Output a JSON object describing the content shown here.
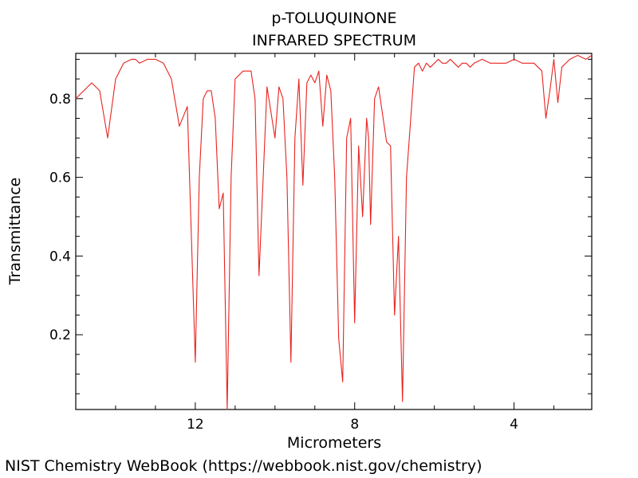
{
  "footer": "NIST Chemistry WebBook (https://webbook.nist.gov/chemistry)",
  "chart_data": {
    "type": "line",
    "title": "p-TOLUQUINONE",
    "subtitle": "INFRARED SPECTRUM",
    "xlabel": "Micrometers",
    "ylabel": "Transmittance",
    "xlim": [
      15.0,
      2.05
    ],
    "ylim": [
      0.01,
      0.915
    ],
    "x_reversed": true,
    "xticks": [
      12,
      8,
      4
    ],
    "yticks": [
      0.2,
      0.4,
      0.6,
      0.8
    ],
    "grid": false,
    "line_color": "#e8231f",
    "series": [
      {
        "x": [
          15.0,
          14.8,
          14.6,
          14.4,
          14.2,
          14.0,
          13.8,
          13.6,
          13.5,
          13.4,
          13.2,
          13.0,
          12.8,
          12.6,
          12.4,
          12.2,
          12.0,
          11.9,
          11.8,
          11.7,
          11.6,
          11.5,
          11.4,
          11.3,
          11.2,
          11.1,
          11.0,
          10.8,
          10.6,
          10.5,
          10.4,
          10.2,
          10.0,
          9.9,
          9.8,
          9.7,
          9.6,
          9.5,
          9.4,
          9.3,
          9.2,
          9.1,
          9.0,
          8.9,
          8.8,
          8.7,
          8.6,
          8.5,
          8.4,
          8.3,
          8.2,
          8.1,
          8.0,
          7.9,
          7.8,
          7.7,
          7.65,
          7.6,
          7.5,
          7.4,
          7.3,
          7.2,
          7.1,
          7.0,
          6.9,
          6.8,
          6.7,
          6.6,
          6.5,
          6.4,
          6.3,
          6.2,
          6.1,
          6.0,
          5.9,
          5.8,
          5.7,
          5.6,
          5.5,
          5.4,
          5.3,
          5.2,
          5.1,
          5.0,
          4.8,
          4.6,
          4.4,
          4.2,
          4.0,
          3.8,
          3.6,
          3.5,
          3.4,
          3.3,
          3.2,
          3.1,
          3.0,
          2.9,
          2.8,
          2.6,
          2.4,
          2.2,
          2.05
        ],
        "y": [
          0.8,
          0.82,
          0.84,
          0.82,
          0.7,
          0.85,
          0.89,
          0.9,
          0.9,
          0.89,
          0.9,
          0.9,
          0.89,
          0.85,
          0.73,
          0.78,
          0.13,
          0.6,
          0.8,
          0.82,
          0.82,
          0.75,
          0.52,
          0.56,
          0.01,
          0.6,
          0.85,
          0.87,
          0.87,
          0.8,
          0.35,
          0.83,
          0.7,
          0.83,
          0.8,
          0.6,
          0.13,
          0.7,
          0.85,
          0.58,
          0.84,
          0.86,
          0.84,
          0.87,
          0.73,
          0.86,
          0.82,
          0.6,
          0.19,
          0.08,
          0.7,
          0.75,
          0.23,
          0.68,
          0.5,
          0.75,
          0.7,
          0.48,
          0.8,
          0.83,
          0.76,
          0.69,
          0.68,
          0.25,
          0.45,
          0.03,
          0.6,
          0.74,
          0.88,
          0.89,
          0.87,
          0.89,
          0.88,
          0.89,
          0.9,
          0.89,
          0.89,
          0.9,
          0.89,
          0.88,
          0.89,
          0.89,
          0.88,
          0.89,
          0.9,
          0.89,
          0.89,
          0.89,
          0.9,
          0.89,
          0.89,
          0.89,
          0.88,
          0.87,
          0.75,
          0.82,
          0.9,
          0.79,
          0.88,
          0.9,
          0.91,
          0.9,
          0.91
        ]
      }
    ]
  }
}
